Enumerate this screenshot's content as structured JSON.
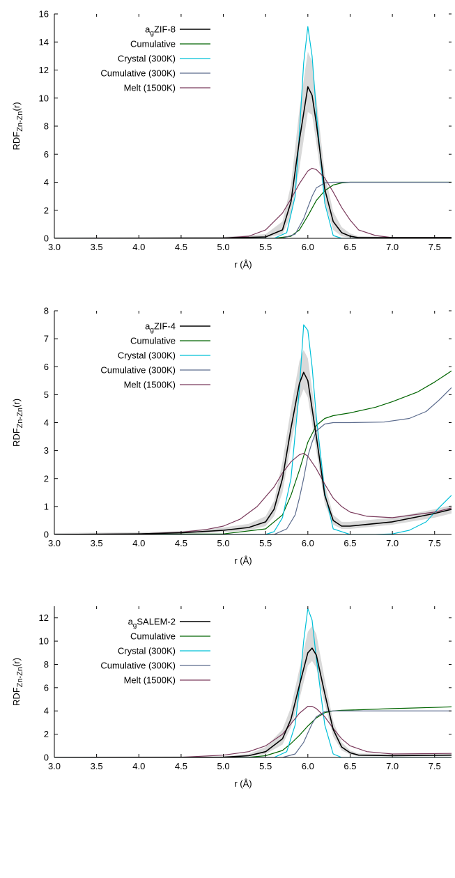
{
  "chart_data": [
    {
      "type": "line",
      "xlabel": "r (Å)",
      "ylabel": {
        "main": "RDF",
        "sub": "Zn-Zn",
        "tail": "(r)"
      },
      "xlim": [
        3.0,
        7.7
      ],
      "ylim": [
        0,
        16
      ],
      "xticks": [
        "3.0",
        "3.5",
        "4.0",
        "4.5",
        "5.0",
        "5.5",
        "6.0",
        "6.5",
        "7.0",
        "7.5"
      ],
      "yticks": [
        "0",
        "2",
        "4",
        "6",
        "8",
        "10",
        "12",
        "14",
        "16"
      ],
      "grid": false,
      "legend_position": "top-left",
      "band_color": "#d9d9d9",
      "series": [
        {
          "name": "a",
          "name_sub": "g",
          "name_tail": "ZIF-8",
          "color": "#000000",
          "x": [
            3.0,
            5.0,
            5.5,
            5.7,
            5.8,
            5.9,
            6.0,
            6.05,
            6.1,
            6.2,
            6.3,
            6.4,
            6.5,
            6.6,
            7.0,
            7.7
          ],
          "y": [
            0.0,
            0.02,
            0.1,
            0.6,
            2.6,
            7.0,
            10.8,
            10.2,
            8.2,
            3.5,
            1.2,
            0.4,
            0.15,
            0.05,
            0.05,
            0.05
          ],
          "band_lower": [
            0.0,
            0.0,
            0.05,
            0.3,
            1.6,
            5.0,
            9.0,
            8.8,
            6.8,
            2.6,
            0.6,
            0.15,
            0.05,
            0.0,
            0.0,
            0.0
          ],
          "band_upper": [
            0.05,
            0.1,
            0.3,
            1.2,
            3.8,
            9.2,
            13.3,
            12.6,
            10.0,
            4.6,
            1.9,
            0.8,
            0.35,
            0.15,
            0.1,
            0.1
          ]
        },
        {
          "name": "Cumulative",
          "color": "#006400",
          "x": [
            3.0,
            5.6,
            5.8,
            5.9,
            6.0,
            6.1,
            6.2,
            6.3,
            6.4,
            6.5,
            7.0,
            7.7
          ],
          "y": [
            0.0,
            0.0,
            0.15,
            0.6,
            1.6,
            2.7,
            3.4,
            3.8,
            3.95,
            4.0,
            4.0,
            4.0
          ]
        },
        {
          "name": "Crystal (300K)",
          "color": "#00c0d8",
          "x": [
            3.0,
            5.6,
            5.75,
            5.85,
            5.9,
            5.95,
            6.0,
            6.05,
            6.1,
            6.2,
            6.3,
            6.4,
            7.7
          ],
          "y": [
            0.0,
            0.0,
            0.4,
            3.0,
            7.5,
            12.5,
            15.1,
            13.0,
            9.0,
            2.5,
            0.2,
            0.0,
            0.0
          ]
        },
        {
          "name": "Cumulative (300K)",
          "color": "#5a6a8c",
          "x": [
            3.0,
            5.7,
            5.85,
            5.95,
            6.0,
            6.05,
            6.1,
            6.2,
            6.3,
            7.7
          ],
          "y": [
            0.0,
            0.0,
            0.3,
            1.4,
            2.2,
            3.0,
            3.6,
            3.95,
            4.0,
            4.0
          ]
        },
        {
          "name": "Melt (1500K)",
          "color": "#7a3a5c",
          "x": [
            3.0,
            5.0,
            5.3,
            5.5,
            5.7,
            5.8,
            5.9,
            6.0,
            6.05,
            6.1,
            6.2,
            6.3,
            6.4,
            6.5,
            6.6,
            6.8,
            7.0,
            7.7
          ],
          "y": [
            0.0,
            0.02,
            0.15,
            0.6,
            1.8,
            2.8,
            3.9,
            4.8,
            5.0,
            4.9,
            4.3,
            3.3,
            2.2,
            1.3,
            0.6,
            0.2,
            0.05,
            0.05
          ]
        }
      ]
    },
    {
      "type": "line",
      "xlabel": "r (Å)",
      "ylabel": {
        "main": "RDF",
        "sub": "Zn-Zn",
        "tail": "(r)"
      },
      "xlim": [
        3.0,
        7.7
      ],
      "ylim": [
        0,
        8
      ],
      "xticks": [
        "3.0",
        "3.5",
        "4.0",
        "4.5",
        "5.0",
        "5.5",
        "6.0",
        "6.5",
        "7.0",
        "7.5"
      ],
      "yticks": [
        "0",
        "1",
        "2",
        "3",
        "4",
        "5",
        "6",
        "7",
        "8"
      ],
      "grid": false,
      "legend_position": "top-left",
      "band_color": "#d9d9d9",
      "series": [
        {
          "name": "a",
          "name_sub": "g",
          "name_tail": "ZIF-4",
          "color": "#000000",
          "x": [
            3.0,
            4.0,
            4.5,
            5.0,
            5.3,
            5.5,
            5.6,
            5.7,
            5.8,
            5.9,
            5.95,
            6.0,
            6.1,
            6.2,
            6.3,
            6.4,
            6.5,
            7.0,
            7.5,
            7.7
          ],
          "y": [
            0.0,
            0.02,
            0.06,
            0.15,
            0.25,
            0.45,
            0.9,
            2.0,
            3.8,
            5.4,
            5.8,
            5.5,
            3.5,
            1.4,
            0.5,
            0.3,
            0.3,
            0.45,
            0.75,
            0.9
          ],
          "band_lower": [
            0.0,
            0.0,
            0.02,
            0.08,
            0.15,
            0.3,
            0.65,
            1.5,
            3.2,
            4.8,
            5.2,
            4.9,
            3.0,
            1.1,
            0.35,
            0.2,
            0.2,
            0.35,
            0.6,
            0.75
          ],
          "band_upper": [
            0.05,
            0.08,
            0.12,
            0.25,
            0.38,
            0.65,
            1.2,
            2.6,
            4.5,
            6.2,
            6.6,
            6.3,
            4.1,
            1.8,
            0.7,
            0.45,
            0.45,
            0.6,
            0.9,
            1.05
          ]
        },
        {
          "name": "Cumulative",
          "color": "#006400",
          "x": [
            3.0,
            5.0,
            5.5,
            5.7,
            5.8,
            5.9,
            6.0,
            6.1,
            6.2,
            6.3,
            6.5,
            6.8,
            7.0,
            7.3,
            7.5,
            7.7
          ],
          "y": [
            0.0,
            0.02,
            0.2,
            0.7,
            1.4,
            2.3,
            3.3,
            3.9,
            4.15,
            4.25,
            4.35,
            4.55,
            4.75,
            5.1,
            5.45,
            5.85
          ]
        },
        {
          "name": "Crystal (300K)",
          "color": "#00c0d8",
          "x": [
            3.0,
            5.5,
            5.6,
            5.7,
            5.8,
            5.9,
            5.95,
            6.0,
            6.05,
            6.1,
            6.2,
            6.3,
            6.5,
            6.8,
            7.0,
            7.2,
            7.4,
            7.55,
            7.7
          ],
          "y": [
            0.0,
            0.0,
            0.1,
            0.6,
            2.0,
            5.2,
            7.5,
            7.3,
            6.0,
            4.2,
            1.5,
            0.2,
            0.0,
            0.0,
            0.02,
            0.15,
            0.45,
            0.95,
            1.4
          ]
        },
        {
          "name": "Cumulative (300K)",
          "color": "#5a6a8c",
          "x": [
            3.0,
            5.6,
            5.75,
            5.85,
            5.9,
            5.95,
            6.0,
            6.05,
            6.1,
            6.2,
            6.3,
            6.5,
            6.9,
            7.2,
            7.4,
            7.55,
            7.7
          ],
          "y": [
            0.0,
            0.0,
            0.2,
            0.7,
            1.3,
            2.0,
            2.8,
            3.3,
            3.7,
            3.95,
            4.0,
            4.0,
            4.02,
            4.15,
            4.4,
            4.8,
            5.25
          ]
        },
        {
          "name": "Melt (1500K)",
          "color": "#7a3a5c",
          "x": [
            3.0,
            4.0,
            4.5,
            4.8,
            5.0,
            5.2,
            5.4,
            5.6,
            5.7,
            5.8,
            5.9,
            5.95,
            6.0,
            6.1,
            6.2,
            6.3,
            6.4,
            6.5,
            6.7,
            7.0,
            7.5,
            7.7
          ],
          "y": [
            0.0,
            0.02,
            0.08,
            0.18,
            0.3,
            0.55,
            1.0,
            1.7,
            2.2,
            2.6,
            2.85,
            2.9,
            2.8,
            2.35,
            1.8,
            1.3,
            1.0,
            0.8,
            0.65,
            0.6,
            0.8,
            0.95
          ]
        }
      ]
    },
    {
      "type": "line",
      "xlabel": "r (Å)",
      "ylabel": {
        "main": "RDF",
        "sub": "Zn-Zn",
        "tail": "(r)"
      },
      "xlim": [
        3.0,
        7.7
      ],
      "ylim": [
        0,
        13
      ],
      "xticks": [
        "3.0",
        "3.5",
        "4.0",
        "4.5",
        "5.0",
        "5.5",
        "6.0",
        "6.5",
        "7.0",
        "7.5"
      ],
      "yticks": [
        "0",
        "2",
        "4",
        "6",
        "8",
        "10",
        "12"
      ],
      "grid": false,
      "legend_position": "top-left",
      "band_color": "#d9d9d9",
      "series": [
        {
          "name": "a",
          "name_sub": "g",
          "name_tail": "SALEM-2",
          "color": "#000000",
          "x": [
            3.0,
            5.0,
            5.3,
            5.5,
            5.7,
            5.8,
            5.9,
            6.0,
            6.05,
            6.1,
            6.2,
            6.3,
            6.4,
            6.5,
            6.6,
            7.0,
            7.7
          ],
          "y": [
            0.0,
            0.02,
            0.15,
            0.5,
            1.6,
            3.3,
            6.2,
            9.0,
            9.4,
            8.8,
            5.5,
            2.4,
            0.9,
            0.4,
            0.2,
            0.15,
            0.2
          ],
          "band_lower": [
            0.0,
            0.0,
            0.08,
            0.3,
            1.1,
            2.6,
            5.0,
            7.9,
            8.3,
            7.7,
            4.6,
            1.8,
            0.6,
            0.25,
            0.1,
            0.08,
            0.1
          ],
          "band_upper": [
            0.05,
            0.1,
            0.3,
            0.9,
            2.4,
            4.3,
            7.6,
            10.8,
            11.3,
            10.6,
            6.7,
            3.1,
            1.3,
            0.6,
            0.35,
            0.25,
            0.3
          ]
        },
        {
          "name": "Cumulative",
          "color": "#006400",
          "x": [
            3.0,
            5.3,
            5.5,
            5.7,
            5.8,
            5.9,
            6.0,
            6.1,
            6.2,
            6.3,
            6.4,
            6.6,
            7.0,
            7.5,
            7.7
          ],
          "y": [
            0.0,
            0.02,
            0.15,
            0.6,
            1.2,
            1.9,
            2.7,
            3.4,
            3.85,
            4.0,
            4.05,
            4.1,
            4.2,
            4.3,
            4.35
          ]
        },
        {
          "name": "Crystal (300K)",
          "color": "#00c0d8",
          "x": [
            3.0,
            5.6,
            5.75,
            5.85,
            5.9,
            5.95,
            6.0,
            6.05,
            6.1,
            6.2,
            6.3,
            6.4,
            7.7
          ],
          "y": [
            0.0,
            0.0,
            0.5,
            2.8,
            6.0,
            10.0,
            12.8,
            11.8,
            8.5,
            2.8,
            0.3,
            0.0,
            0.0
          ]
        },
        {
          "name": "Cumulative (300K)",
          "color": "#5a6a8c",
          "x": [
            3.0,
            5.7,
            5.85,
            5.95,
            6.0,
            6.05,
            6.1,
            6.2,
            6.3,
            7.7
          ],
          "y": [
            0.0,
            0.0,
            0.3,
            1.3,
            2.1,
            2.9,
            3.5,
            3.95,
            4.0,
            4.0
          ]
        },
        {
          "name": "Melt (1500K)",
          "color": "#7a3a5c",
          "x": [
            3.0,
            4.5,
            5.0,
            5.3,
            5.5,
            5.7,
            5.8,
            5.9,
            6.0,
            6.05,
            6.1,
            6.2,
            6.3,
            6.4,
            6.5,
            6.7,
            7.0,
            7.7
          ],
          "y": [
            0.0,
            0.02,
            0.2,
            0.5,
            1.0,
            2.0,
            2.9,
            3.8,
            4.4,
            4.4,
            4.2,
            3.5,
            2.5,
            1.6,
            1.0,
            0.5,
            0.3,
            0.35
          ]
        }
      ]
    }
  ]
}
